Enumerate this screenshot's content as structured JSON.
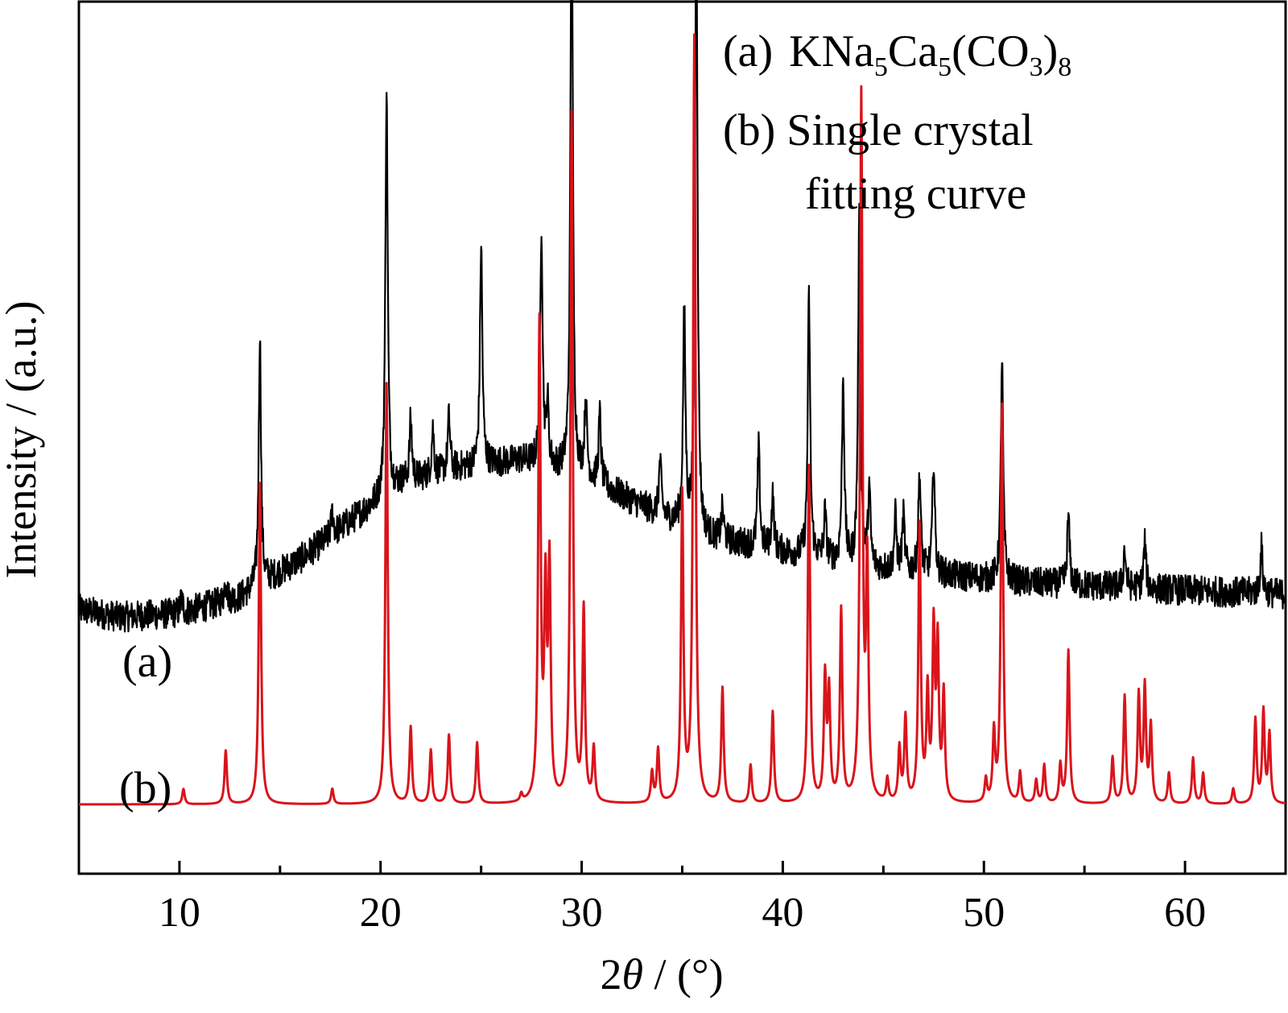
{
  "chart_data": {
    "type": "line",
    "xlabel_prefix": "2",
    "xlabel_theta": "θ",
    "xlabel_suffix": " / (°)",
    "ylabel": "Intensity / (a.u.)",
    "xlim": [
      5,
      65
    ],
    "xticks": [
      10,
      20,
      30,
      40,
      50,
      60
    ],
    "grid": false,
    "legend_position": "top-right",
    "legend": {
      "a": {
        "tag": "(a)",
        "f1": "KNa",
        "s1": "5",
        "f2": "Ca",
        "s2": "5",
        "f3": "(CO",
        "s3": "3",
        "f4": ")",
        "s4": "8"
      },
      "b_line1": "(b) Single crystal",
      "b_line2": "fitting curve"
    },
    "series": [
      {
        "tag": "(a)",
        "color": "#000000",
        "baseline": [
          [
            5,
            0.335
          ],
          [
            7,
            0.325
          ],
          [
            10,
            0.33
          ],
          [
            13,
            0.35
          ],
          [
            16,
            0.4
          ],
          [
            19,
            0.46
          ],
          [
            21,
            0.5
          ],
          [
            24,
            0.52
          ],
          [
            27,
            0.53
          ],
          [
            30,
            0.51
          ],
          [
            33,
            0.47
          ],
          [
            36,
            0.43
          ],
          [
            40,
            0.41
          ],
          [
            44,
            0.39
          ],
          [
            48,
            0.38
          ],
          [
            52,
            0.37
          ],
          [
            56,
            0.365
          ],
          [
            60,
            0.36
          ],
          [
            65,
            0.355
          ]
        ],
        "noise": 0.02,
        "peaks": [
          [
            10.1,
            0.02
          ],
          [
            12.3,
            0.03
          ],
          [
            14.0,
            0.33
          ],
          [
            17.6,
            0.03
          ],
          [
            20.3,
            0.53
          ],
          [
            21.5,
            0.08
          ],
          [
            22.6,
            0.06
          ],
          [
            23.4,
            0.07
          ],
          [
            25.0,
            0.29
          ],
          [
            28.0,
            0.31
          ],
          [
            28.3,
            0.08
          ],
          [
            29.5,
            0.79
          ],
          [
            30.2,
            0.1
          ],
          [
            30.9,
            0.09
          ],
          [
            33.9,
            0.07
          ],
          [
            35.1,
            0.28
          ],
          [
            35.7,
            0.84
          ],
          [
            37.0,
            0.04
          ],
          [
            38.8,
            0.13
          ],
          [
            39.5,
            0.07
          ],
          [
            41.3,
            0.34
          ],
          [
            42.1,
            0.06
          ],
          [
            43.0,
            0.24
          ],
          [
            43.8,
            0.45
          ],
          [
            44.3,
            0.1
          ],
          [
            45.6,
            0.07
          ],
          [
            46.0,
            0.07
          ],
          [
            46.8,
            0.13
          ],
          [
            47.5,
            0.15
          ],
          [
            50.9,
            0.29
          ],
          [
            54.2,
            0.09
          ],
          [
            57.0,
            0.05
          ],
          [
            58.0,
            0.06
          ],
          [
            63.8,
            0.06
          ]
        ]
      },
      {
        "tag": "(b)",
        "color": "#d9141b",
        "baseline": [
          [
            5,
            0.08
          ],
          [
            65,
            0.08
          ]
        ],
        "noise": 0.0,
        "peaks": [
          [
            10.2,
            0.02
          ],
          [
            12.3,
            0.07
          ],
          [
            14.0,
            0.42
          ],
          [
            17.6,
            0.02
          ],
          [
            20.3,
            0.55
          ],
          [
            21.5,
            0.1
          ],
          [
            22.5,
            0.07
          ],
          [
            23.4,
            0.09
          ],
          [
            24.8,
            0.08
          ],
          [
            27.0,
            0.01
          ],
          [
            27.9,
            0.62
          ],
          [
            28.2,
            0.26
          ],
          [
            28.4,
            0.3
          ],
          [
            29.5,
            0.9
          ],
          [
            30.1,
            0.25
          ],
          [
            30.6,
            0.07
          ],
          [
            33.5,
            0.04
          ],
          [
            33.8,
            0.07
          ],
          [
            35.0,
            0.4
          ],
          [
            35.6,
            1.0
          ],
          [
            37.0,
            0.15
          ],
          [
            38.4,
            0.05
          ],
          [
            39.5,
            0.12
          ],
          [
            41.3,
            0.44
          ],
          [
            42.1,
            0.16
          ],
          [
            42.3,
            0.14
          ],
          [
            42.9,
            0.25
          ],
          [
            43.9,
            0.92
          ],
          [
            44.2,
            0.3
          ],
          [
            45.2,
            0.03
          ],
          [
            45.8,
            0.07
          ],
          [
            46.1,
            0.11
          ],
          [
            46.8,
            0.36
          ],
          [
            47.2,
            0.14
          ],
          [
            47.5,
            0.22
          ],
          [
            47.7,
            0.2
          ],
          [
            48.0,
            0.14
          ],
          [
            50.1,
            0.03
          ],
          [
            50.5,
            0.09
          ],
          [
            50.9,
            0.52
          ],
          [
            51.8,
            0.04
          ],
          [
            52.6,
            0.03
          ],
          [
            53.0,
            0.05
          ],
          [
            53.8,
            0.05
          ],
          [
            54.2,
            0.2
          ],
          [
            56.4,
            0.06
          ],
          [
            57.0,
            0.14
          ],
          [
            57.7,
            0.14
          ],
          [
            58.0,
            0.15
          ],
          [
            58.3,
            0.1
          ],
          [
            59.2,
            0.04
          ],
          [
            60.4,
            0.06
          ],
          [
            60.9,
            0.04
          ],
          [
            62.4,
            0.02
          ],
          [
            63.5,
            0.11
          ],
          [
            63.9,
            0.12
          ],
          [
            64.2,
            0.09
          ]
        ]
      }
    ]
  }
}
